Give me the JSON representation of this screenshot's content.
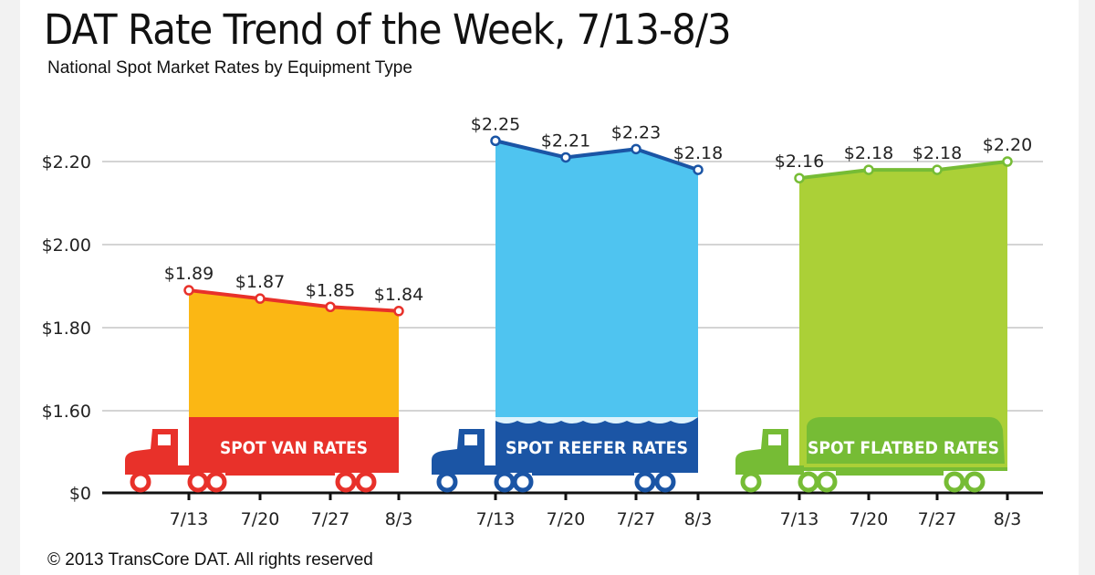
{
  "title": "DAT Rate Trend of the Week, 7/13-8/3",
  "subtitle": "National Spot Market Rates by Equipment Type",
  "footer": "© 2013 TransCore DAT. All rights reserved",
  "chart_data": {
    "type": "area",
    "title": "DAT Rate Trend of the Week, 7/13-8/3",
    "subtitle": "National Spot Market Rates by Equipment Type",
    "yaxis": {
      "ticks": [
        "$0",
        "$1.60",
        "$1.80",
        "$2.00",
        "$2.20"
      ],
      "tick_values": [
        0,
        1.6,
        1.8,
        2.0,
        2.2
      ],
      "broken_between": [
        0,
        1.6
      ],
      "grid": true
    },
    "series": [
      {
        "name": "SPOT VAN RATES",
        "categories": [
          "7/13",
          "7/20",
          "7/27",
          "8/3"
        ],
        "values": [
          1.89,
          1.87,
          1.85,
          1.84
        ],
        "labels": [
          "$1.89",
          "$1.87",
          "$1.85",
          "$1.84"
        ],
        "fill": "#fbb714",
        "band": "#e8312a",
        "line": "#e8312a"
      },
      {
        "name": "SPOT REEFER RATES",
        "categories": [
          "7/13",
          "7/20",
          "7/27",
          "8/3"
        ],
        "values": [
          2.25,
          2.21,
          2.23,
          2.18
        ],
        "labels": [
          "$2.25",
          "$2.21",
          "$2.23",
          "$2.18"
        ],
        "fill": "#4fc4f0",
        "band": "#1b55a5",
        "line": "#1b55a5"
      },
      {
        "name": "SPOT FLATBED RATES",
        "categories": [
          "7/13",
          "7/20",
          "7/27",
          "8/3"
        ],
        "values": [
          2.16,
          2.18,
          2.18,
          2.2
        ],
        "labels": [
          "$2.16",
          "$2.18",
          "$2.18",
          "$2.20"
        ],
        "fill": "#abd037",
        "band": "#76bc35",
        "line": "#76bc35"
      }
    ]
  }
}
